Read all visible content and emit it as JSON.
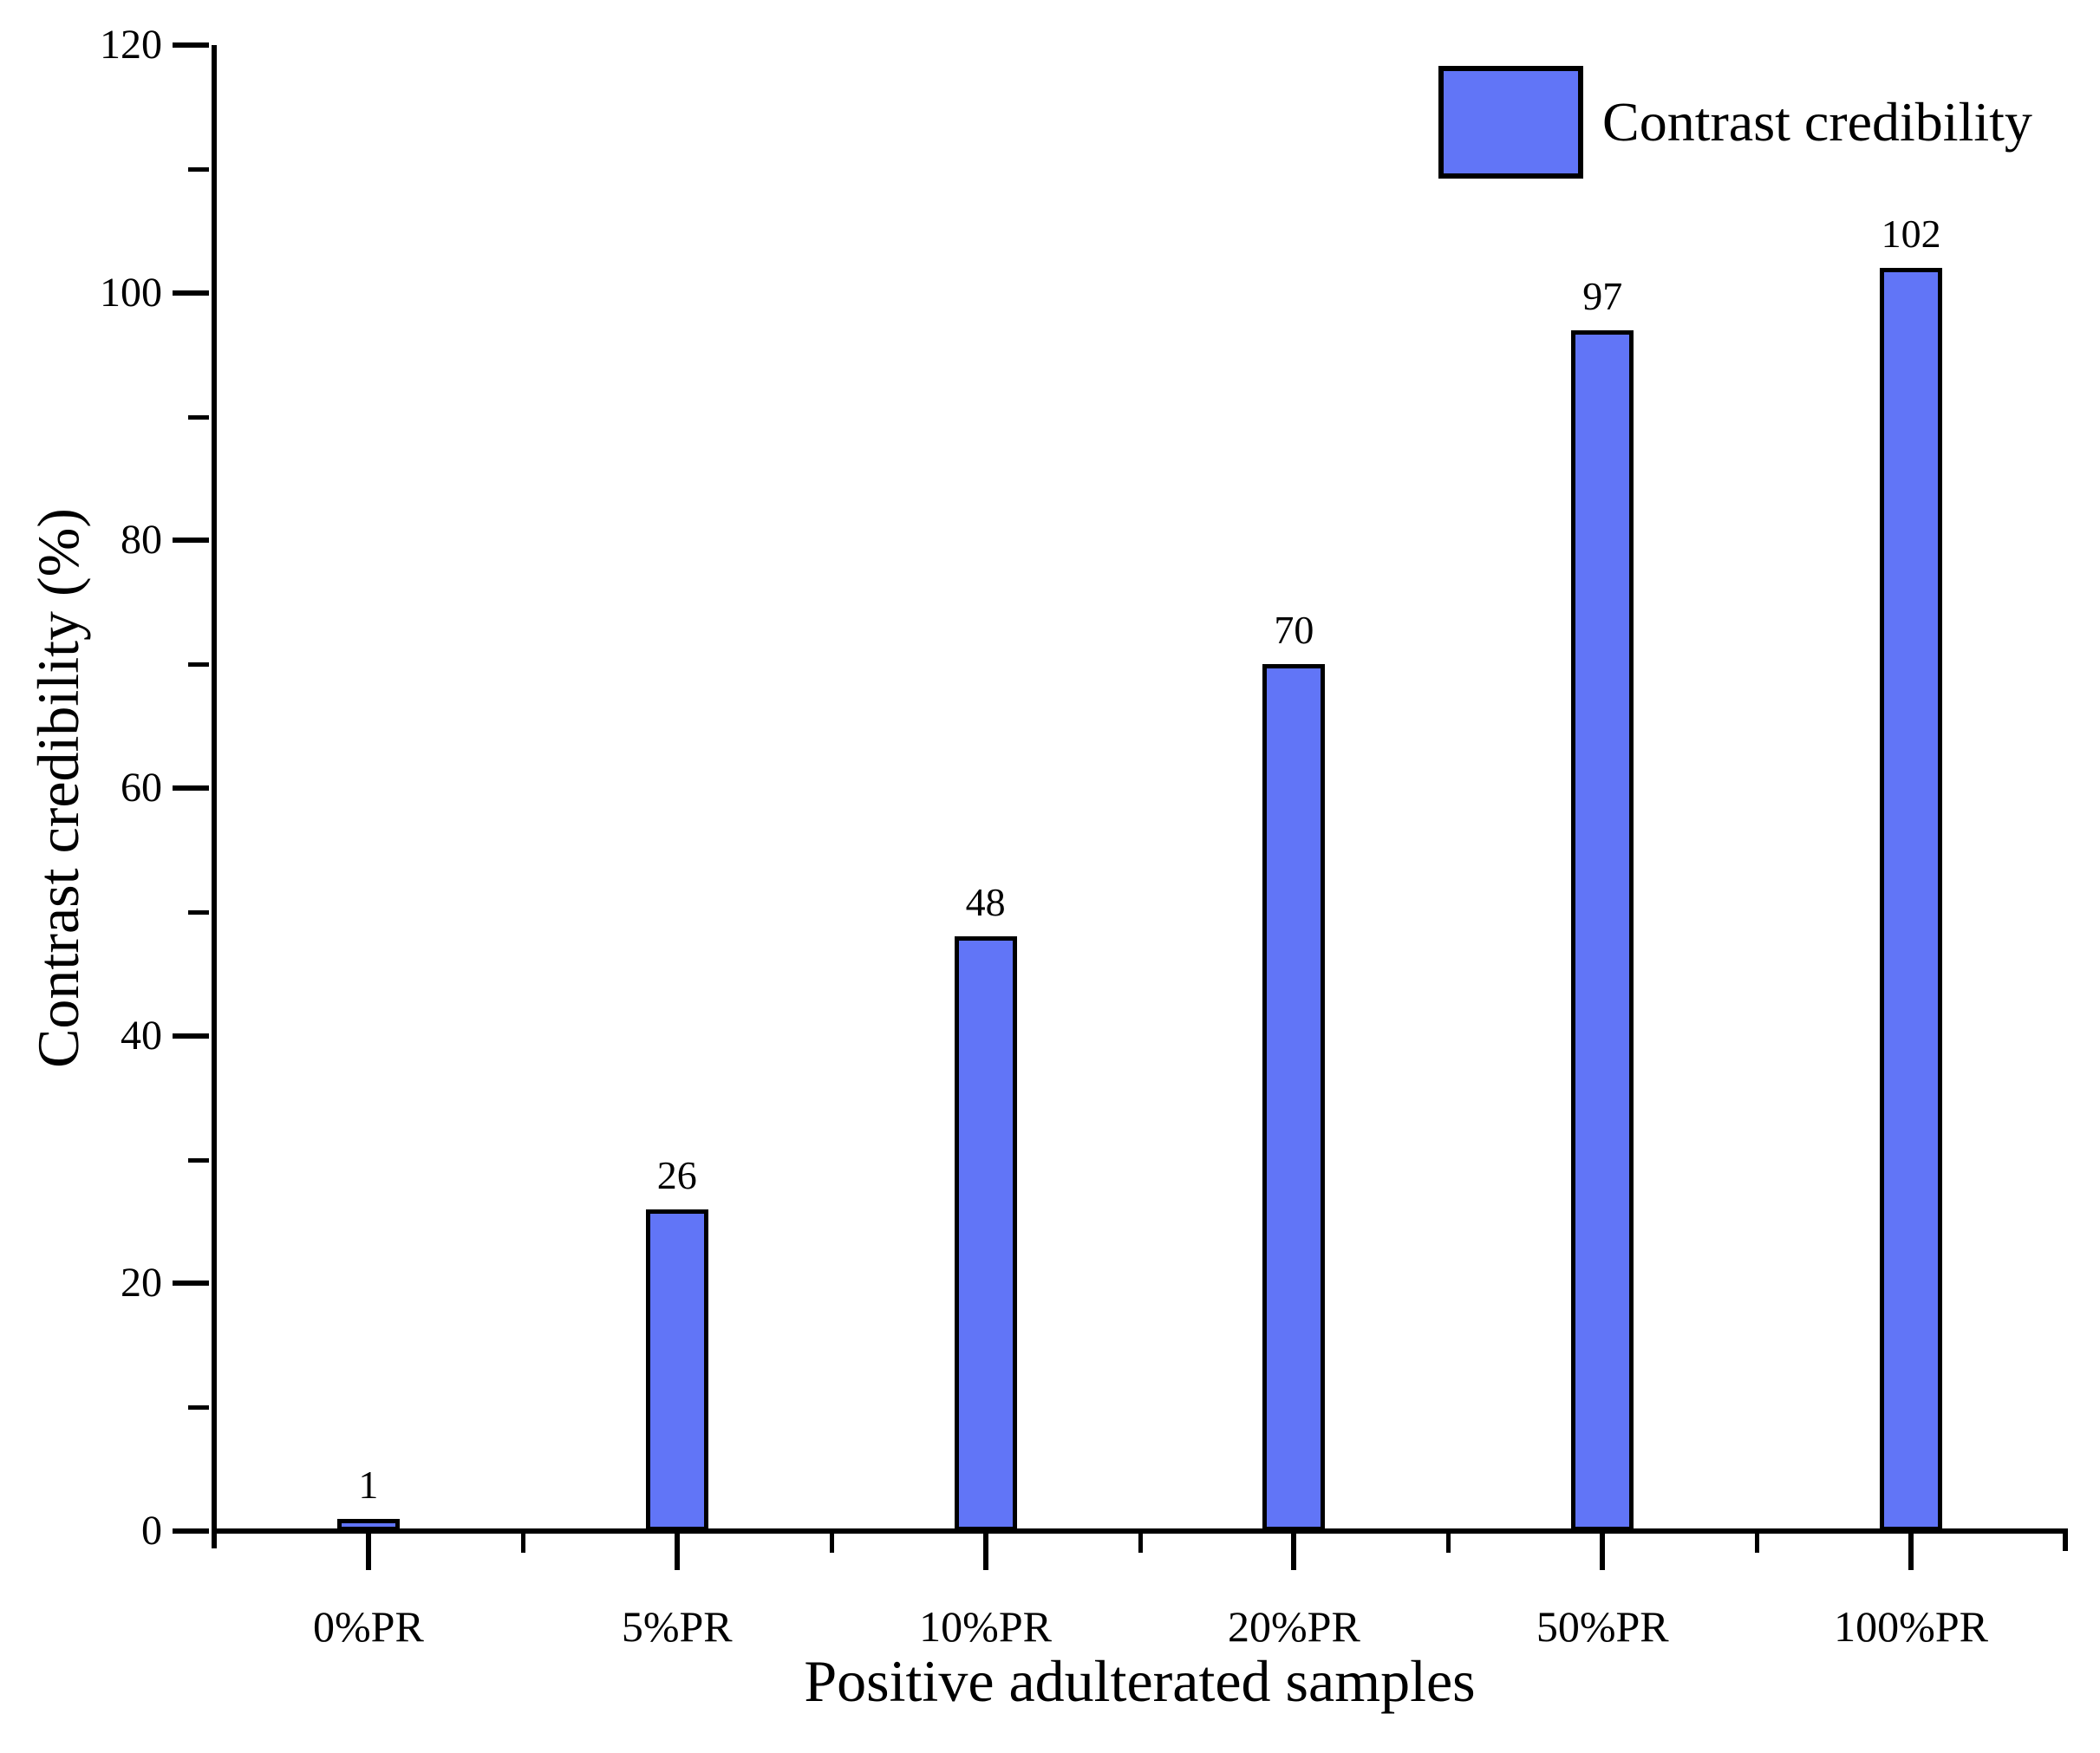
{
  "figure": {
    "background_color": "#ffffff",
    "axis_color": "#000000",
    "text_color": "#000000"
  },
  "legend": {
    "label": "Contrast credibility",
    "swatch_color": "#6175f7",
    "swatch_border_color": "#000000",
    "position": "top-right"
  },
  "chart_data": {
    "type": "bar",
    "title": "",
    "categories": [
      "0%PR",
      "5%PR",
      "10%PR",
      "20%PR",
      "50%PR",
      "100%PR"
    ],
    "values": [
      1,
      26,
      48,
      70,
      97,
      102
    ],
    "series_name": "Contrast credibility",
    "xlabel": "Positive adulterated samples",
    "ylabel": "Contrast credibility (%)",
    "ylim": [
      0,
      120
    ],
    "ytick_labels": [
      0,
      20,
      40,
      60,
      80,
      100,
      120
    ],
    "ytick_step": 20,
    "yminor_step": 10,
    "xminor_ticks": "category-boundaries",
    "bar_color": "#6175f7",
    "bar_border_color": "#000000",
    "value_labels_shown": true,
    "grid": false,
    "legend_position": "top-right"
  }
}
